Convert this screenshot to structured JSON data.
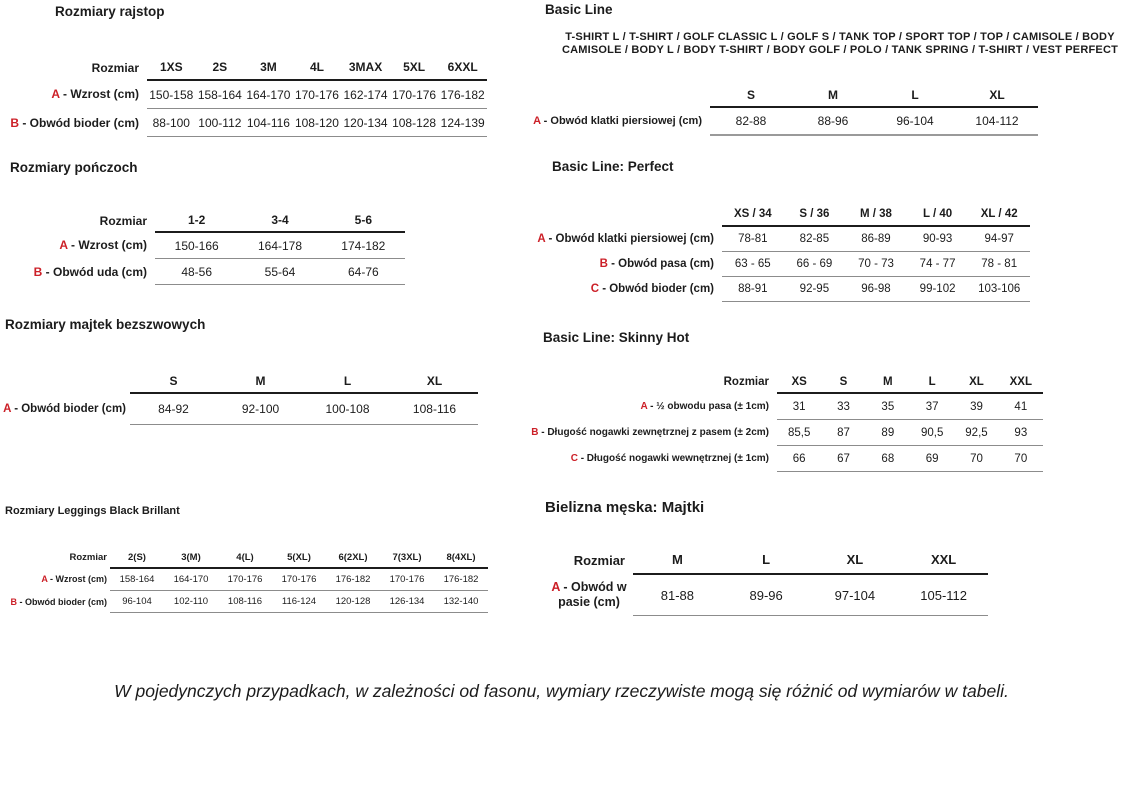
{
  "colors": {
    "accent_red": "#cc2028",
    "text": "#1c1c1c",
    "header_line": "#1c1c1c",
    "separator_line": "#8c8c8c"
  },
  "sections": {
    "rajstop": {
      "title": "Rozmiary rajstop",
      "corner": "Rozmiar",
      "columns": [
        "1XS",
        "2S",
        "3M",
        "4L",
        "3MAX",
        "5XL",
        "6XXL"
      ],
      "rows": [
        {
          "letter": "A",
          "label": "- Wzrost (cm)",
          "values": [
            "150-158",
            "158-164",
            "164-170",
            "170-176",
            "162-174",
            "170-176",
            "176-182"
          ]
        },
        {
          "letter": "B",
          "label": "- Obwód bioder (cm)",
          "values": [
            "88-100",
            "100-112",
            "104-116",
            "108-120",
            "120-134",
            "108-128",
            "124-139"
          ]
        }
      ]
    },
    "ponczoch": {
      "title": "Rozmiary pończoch",
      "corner": "Rozmiar",
      "columns": [
        "1-2",
        "3-4",
        "5-6"
      ],
      "rows": [
        {
          "letter": "A",
          "label": "- Wzrost (cm)",
          "values": [
            "150-166",
            "164-178",
            "174-182"
          ]
        },
        {
          "letter": "B",
          "label": "- Obwód uda (cm)",
          "values": [
            "48-56",
            "55-64",
            "64-76"
          ]
        }
      ]
    },
    "majtek": {
      "title": "Rozmiary majtek bezszwowych",
      "corner": "",
      "columns": [
        "S",
        "M",
        "L",
        "XL"
      ],
      "rows": [
        {
          "letter": "A",
          "label": "- Obwód bioder (cm)",
          "values": [
            "84-92",
            "92-100",
            "100-108",
            "108-116"
          ]
        }
      ]
    },
    "leggings": {
      "title": "Rozmiary Leggings Black Brillant",
      "corner": "Rozmiar",
      "columns": [
        "2(S)",
        "3(M)",
        "4(L)",
        "5(XL)",
        "6(2XL)",
        "7(3XL)",
        "8(4XL)"
      ],
      "rows": [
        {
          "letter": "A",
          "label": "- Wzrost (cm)",
          "values": [
            "158-164",
            "164-170",
            "170-176",
            "170-176",
            "176-182",
            "170-176",
            "176-182"
          ]
        },
        {
          "letter": "B",
          "label": "- Obwód bioder (cm)",
          "values": [
            "96-104",
            "102-110",
            "108-116",
            "116-124",
            "120-128",
            "126-134",
            "132-140"
          ]
        }
      ]
    },
    "basic_line": {
      "title": "Basic Line",
      "products_line1": "T-SHIRT L / T-SHIRT / GOLF CLASSIC L / GOLF S / TANK TOP / SPORT TOP / TOP / CAMISOLE / BODY",
      "products_line2": "CAMISOLE / BODY L / BODY T-SHIRT / BODY GOLF / POLO / TANK SPRING / T-SHIRT / VEST PERFECT",
      "corner": "",
      "columns": [
        "S",
        "M",
        "L",
        "XL"
      ],
      "rows": [
        {
          "letter": "A",
          "label": "- Obwód klatki piersiowej (cm)",
          "values": [
            "82-88",
            "88-96",
            "96-104",
            "104-112"
          ]
        }
      ]
    },
    "perfect": {
      "title": "Basic Line: Perfect",
      "corner": "",
      "columns": [
        "XS / 34",
        "S / 36",
        "M / 38",
        "L / 40",
        "XL / 42"
      ],
      "rows": [
        {
          "letter": "A",
          "label": "- Obwód klatki piersiowej (cm)",
          "values": [
            "78-81",
            "82-85",
            "86-89",
            "90-93",
            "94-97"
          ]
        },
        {
          "letter": "B",
          "label": "- Obwód pasa (cm)",
          "values": [
            "63 - 65",
            "66 - 69",
            "70 - 73",
            "74 - 77",
            "78 - 81"
          ]
        },
        {
          "letter": "C",
          "label": "- Obwód bioder (cm)",
          "values": [
            "88-91",
            "92-95",
            "96-98",
            "99-102",
            "103-106"
          ]
        }
      ]
    },
    "skinny_hot": {
      "title": "Basic Line: Skinny Hot",
      "corner": "Rozmiar",
      "columns": [
        "XS",
        "S",
        "M",
        "L",
        "XL",
        "XXL"
      ],
      "rows": [
        {
          "letter": "A",
          "label": "- ½ obwodu pasa (± 1cm)",
          "values": [
            "31",
            "33",
            "35",
            "37",
            "39",
            "41"
          ]
        },
        {
          "letter": "B",
          "label": "- Długość nogawki zewnętrznej z pasem (± 2cm)",
          "values": [
            "85,5",
            "87",
            "89",
            "90,5",
            "92,5",
            "93"
          ]
        },
        {
          "letter": "C",
          "label": "- Długość nogawki wewnętrznej (± 1cm)",
          "values": [
            "66",
            "67",
            "68",
            "69",
            "70",
            "70"
          ]
        }
      ]
    },
    "majtki_meskie": {
      "title": "Bielizna męska: Majtki",
      "corner": "Rozmiar",
      "columns": [
        "M",
        "L",
        "XL",
        "XXL"
      ],
      "rows": [
        {
          "letter": "A",
          "label": "- Obwód w pasie (cm)",
          "values": [
            "81-88",
            "89-96",
            "97-104",
            "105-112"
          ]
        }
      ]
    }
  },
  "footer": {
    "note": "W pojedynczych przypadkach, w zależności od fasonu, wymiary rzeczywiste mogą się różnić od wymiarów w tabeli."
  }
}
